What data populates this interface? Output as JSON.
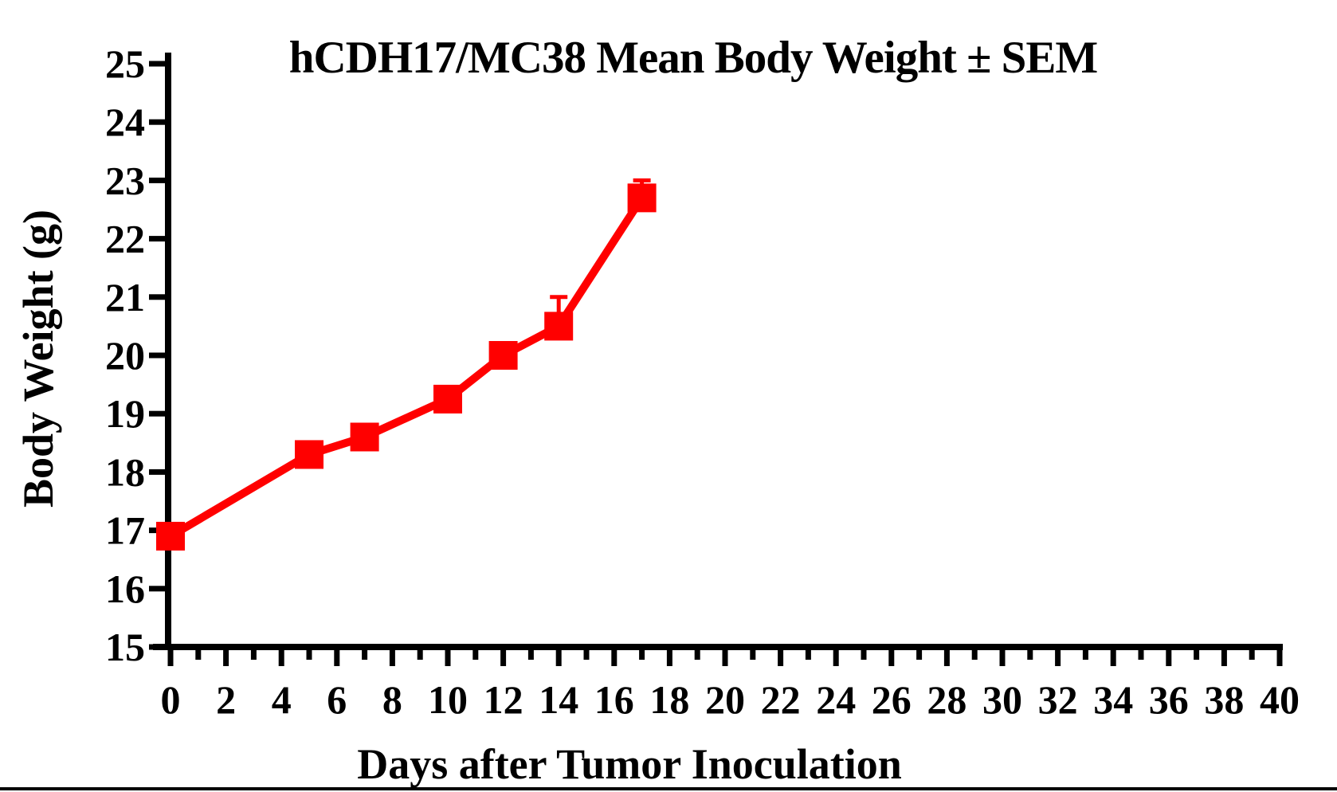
{
  "chart_data": {
    "type": "line",
    "title": "hCDH17/MC38 Mean Body Weight ± SEM",
    "xlabel": "Days after Tumor Inoculation",
    "ylabel": "Body Weight (g)",
    "x": [
      0,
      5,
      7,
      10,
      12,
      14,
      17
    ],
    "series": [
      {
        "name": "hCDH17/MC38 mean body weight",
        "color": "#ff0000",
        "values": [
          16.9,
          18.3,
          18.6,
          19.25,
          20.0,
          20.5,
          22.7
        ],
        "sem_upper": [
          0,
          0,
          0,
          0,
          0,
          0.5,
          0.3
        ]
      }
    ],
    "xlim": [
      0,
      40
    ],
    "ylim": [
      15,
      25
    ],
    "x_major_tick_step": 2,
    "x_minor_tick_step": 1,
    "y_tick_step": 1,
    "grid": false,
    "legend": "none",
    "marker": "square",
    "error_bars": "upper",
    "axis_color": "#000000",
    "background_color": "#ffffff"
  }
}
